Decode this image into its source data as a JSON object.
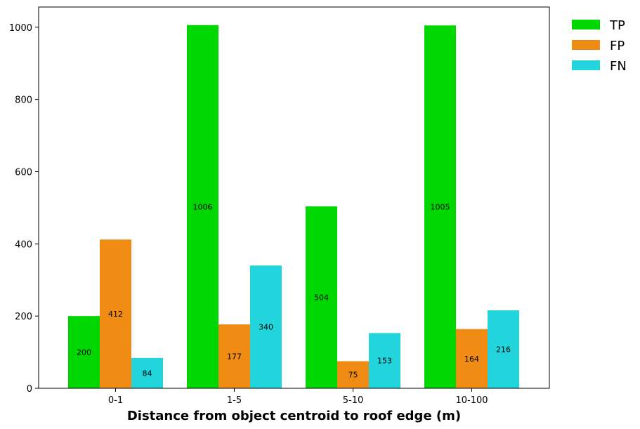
{
  "chart_data": {
    "type": "bar",
    "title": "",
    "xlabel": "Distance from object centroid to roof edge (m)",
    "ylabel": "",
    "categories": [
      "0-1",
      "1-5",
      "5-10",
      "10-100"
    ],
    "series": [
      {
        "name": "TP",
        "color": "#00d700",
        "values": [
          200,
          1006,
          504,
          1005
        ]
      },
      {
        "name": "FP",
        "color": "#f08c14",
        "values": [
          412,
          177,
          75,
          164
        ]
      },
      {
        "name": "FN",
        "color": "#22d5dc",
        "values": [
          84,
          340,
          153,
          216
        ]
      }
    ],
    "yticks": [
      0,
      200,
      400,
      600,
      800,
      1000
    ],
    "ylim": [
      0,
      1056
    ],
    "grid": false,
    "legend_position": "outside-top-right",
    "data_labels": true
  }
}
